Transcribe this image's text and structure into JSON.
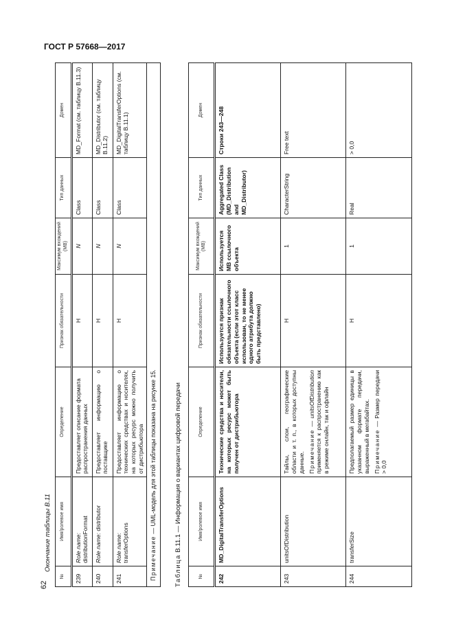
{
  "header": "ГОСТ Р 57668—2017",
  "page_number": "62",
  "columns": [
    "№",
    "Имя/ролевое имя",
    "Определение",
    "Признак обязательности",
    "Максимум вхождений (МВ)",
    "Тип данных",
    "Домен"
  ],
  "table1": {
    "caption": "Окончание таблицы B.11",
    "rows": [
      {
        "no": "239",
        "name_prefix": "Role name:",
        "name": "distributionFormat",
        "def": "Предоставляет описание формата распространения данных",
        "oblig": "Н",
        "max": "N",
        "type": "Class",
        "domain": "MD_Format (см. таблицу B.11.3)"
      },
      {
        "no": "240",
        "name_prefix": "Role name:",
        "name": "distributor",
        "def": "Предоставляет информацию о поставщике",
        "oblig": "Н",
        "max": "N",
        "type": "Class",
        "domain": "MD_Distributor (см. таблицу B.11.2)"
      },
      {
        "no": "241",
        "name_prefix": "Role name:",
        "name": "transferOptions",
        "def": "Предоставляет информацию о технических средствах и носителях, на которых ресурс можно получить от дистрибьютора",
        "oblig": "Н",
        "max": "N",
        "type": "Class",
        "domain": "MD_DigitalTransferOptions (см. таблицу B.11.1)"
      }
    ],
    "note_label": "Примечание",
    "note_text": " — UML-модель для этой таблицы показана на рисунке 15."
  },
  "table2": {
    "caption_label": "Таблица",
    "caption_text": " B.11.1 — Информация о вариантах цифровой передачи",
    "rows": [
      {
        "no": "242",
        "name": "MD_DigitalTransferOptions",
        "def": "Технические средства и носители, на которых ресурс может быть получен от дистрибьютора",
        "oblig": "Используется признак обязательности ссылочного объекта (если этот класс использован, то не менее одного атрибута должно быть представлено)",
        "max": "Используется МВ ссылочного объекта",
        "type": "Aggregated Class (MD_Distribution and MD_Distributor)",
        "domain": "Строки 243—248"
      },
      {
        "no": "243",
        "name": "unitsOfDistribution",
        "def": "Тайлы, слои, географические области и т. п., в которых доступны данные.",
        "note_label": "Примечание",
        "note_pre": " — ",
        "note_italic": "unitsOfDistribution",
        "note_text": " применяется к распространению как в режиме онлайн, так и офлайн",
        "oblig": "Н",
        "max": "1",
        "type": "CharacterString",
        "domain": "Free text"
      },
      {
        "no": "244",
        "name": "transferSize",
        "def": "Предполагаемый размер единицы в указанном формате передачи, выраженный в мегабайтах.",
        "note_label": "Примечание",
        "note_text": " — Размер передачи > 0,0",
        "oblig": "Н",
        "max": "1",
        "type": "Real",
        "domain": "> 0,0"
      }
    ]
  }
}
